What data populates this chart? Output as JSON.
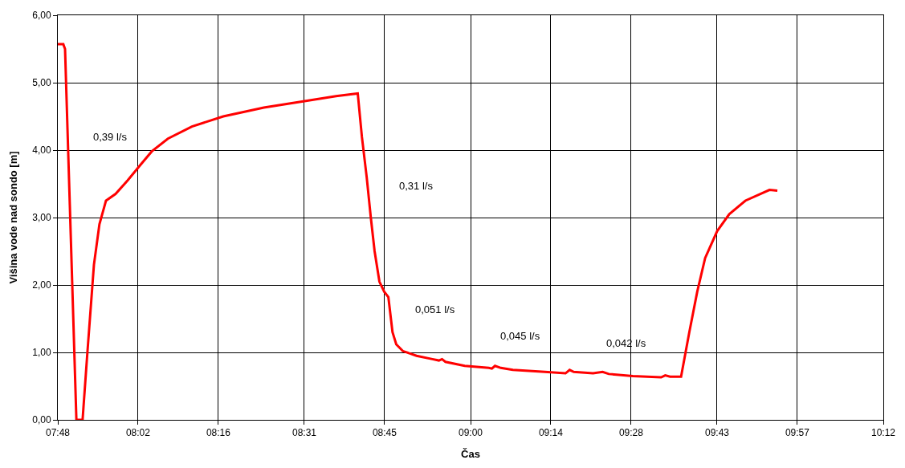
{
  "chart_data": {
    "type": "line",
    "xlabel": "Čas",
    "ylabel": "Višina vode nad sondo [m]",
    "x": [
      7.8,
      7.816,
      7.821,
      7.854,
      7.872,
      7.886,
      7.905,
      7.921,
      7.94,
      7.968,
      8.003,
      8.04,
      8.073,
      8.12,
      8.19,
      8.281,
      8.399,
      8.521,
      8.609,
      8.656,
      8.672,
      8.684,
      8.698,
      8.71,
      8.721,
      8.735,
      8.749,
      8.761,
      8.773,
      8.784,
      8.803,
      8.843,
      8.889,
      8.908,
      8.917,
      8.927,
      8.983,
      9.053,
      9.062,
      9.071,
      9.088,
      9.123,
      9.216,
      9.276,
      9.288,
      9.3,
      9.332,
      9.356,
      9.384,
      9.402,
      9.472,
      9.554,
      9.566,
      9.58,
      9.612,
      9.636,
      9.659,
      9.682,
      9.717,
      9.752,
      9.799,
      9.869,
      9.892
    ],
    "series": [
      {
        "color": "#ff0000",
        "values": [
          5.57,
          5.57,
          5.5,
          0,
          0,
          1.0,
          2.3,
          2.9,
          3.25,
          3.35,
          3.55,
          3.78,
          3.98,
          4.17,
          4.35,
          4.5,
          4.63,
          4.73,
          4.8,
          4.83,
          4.84,
          4.2,
          3.6,
          3.0,
          2.5,
          2.05,
          1.9,
          1.82,
          1.3,
          1.12,
          1.02,
          0.95,
          0.9,
          0.88,
          0.9,
          0.86,
          0.8,
          0.77,
          0.76,
          0.8,
          0.77,
          0.74,
          0.71,
          0.69,
          0.74,
          0.71,
          0.7,
          0.69,
          0.71,
          0.68,
          0.65,
          0.63,
          0.66,
          0.64,
          0.64,
          1.3,
          1.9,
          2.4,
          2.8,
          3.05,
          3.25,
          3.41,
          3.4
        ]
      }
    ],
    "xlim": [
      7.8,
      10.2
    ],
    "xticks": [
      {
        "value": 7.8,
        "label": "07:48"
      },
      {
        "value": 8.0333,
        "label": "08:02"
      },
      {
        "value": 8.2667,
        "label": "08:16"
      },
      {
        "value": 8.5167,
        "label": "08:31"
      },
      {
        "value": 8.75,
        "label": "08:45"
      },
      {
        "value": 9.0,
        "label": "09:00"
      },
      {
        "value": 9.2333,
        "label": "09:14"
      },
      {
        "value": 9.4667,
        "label": "09:28"
      },
      {
        "value": 9.7167,
        "label": "09:43"
      },
      {
        "value": 9.95,
        "label": "09:57"
      },
      {
        "value": 10.2,
        "label": "10:12"
      }
    ],
    "ylim": [
      0,
      6
    ],
    "yticks": [
      {
        "value": 0,
        "label": "0,00"
      },
      {
        "value": 1,
        "label": "1,00"
      },
      {
        "value": 2,
        "label": "2,00"
      },
      {
        "value": 3,
        "label": "3,00"
      },
      {
        "value": 4,
        "label": "4,00"
      },
      {
        "value": 5,
        "label": "5,00"
      },
      {
        "value": 6,
        "label": "6,00"
      }
    ],
    "grid": true,
    "marker": "none",
    "line_style": "solid",
    "annotations": [
      "0,39 l/s",
      "0,31 l/s",
      "0,051 l/s",
      "0,045 l/s",
      "0,042 l/s"
    ]
  }
}
